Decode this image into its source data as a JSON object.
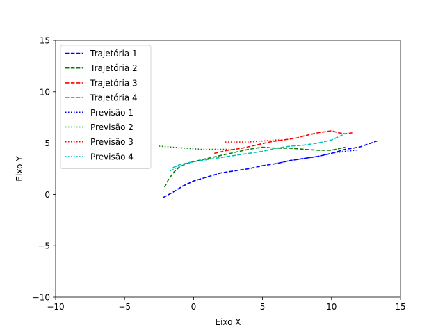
{
  "chart_data": {
    "type": "line",
    "title": "",
    "xlabel": "Eixo X",
    "ylabel": "Eixo Y",
    "xlim": [
      -10,
      15
    ],
    "ylim": [
      -10,
      15
    ],
    "xticks": [
      -10,
      -5,
      0,
      5,
      10,
      15
    ],
    "yticks": [
      -10,
      -5,
      0,
      5,
      10,
      15
    ],
    "xtick_labels": [
      "−10",
      "−5",
      "0",
      "5",
      "10",
      "15"
    ],
    "ytick_labels": [
      "−10",
      "−5",
      "0",
      "5",
      "10",
      "15"
    ],
    "grid": false,
    "legend_position": "top-left",
    "series": [
      {
        "name": "Trajetória 1",
        "color": "#0000ff",
        "style": "dashed",
        "x": [
          -2.2,
          -1.5,
          -0.8,
          0.0,
          1.0,
          2.0,
          3.0,
          4.0,
          5.0,
          6.0,
          7.0,
          8.0,
          9.0,
          10.0,
          11.0,
          12.0,
          13.3
        ],
        "y": [
          -0.3,
          0.2,
          0.8,
          1.3,
          1.7,
          2.1,
          2.3,
          2.5,
          2.8,
          3.0,
          3.3,
          3.5,
          3.7,
          4.0,
          4.4,
          4.6,
          5.2
        ]
      },
      {
        "name": "Trajetória 2",
        "color": "#008000",
        "style": "dashed",
        "x": [
          -2.1,
          -1.8,
          -1.4,
          -1.0,
          -0.5,
          0.0,
          1.0,
          2.0,
          3.0,
          4.0,
          5.0,
          6.0,
          7.0,
          8.0,
          9.0,
          10.0,
          11.0
        ],
        "y": [
          0.7,
          1.5,
          2.2,
          2.7,
          3.0,
          3.2,
          3.5,
          3.8,
          4.1,
          4.4,
          4.6,
          4.5,
          4.5,
          4.4,
          4.3,
          4.3,
          4.6
        ]
      },
      {
        "name": "Trajetória 3",
        "color": "#ff0000",
        "style": "dashed",
        "x": [
          1.5,
          2.5,
          3.5,
          4.5,
          5.5,
          6.5,
          7.5,
          8.0,
          9.0,
          10.0,
          10.5,
          11.0,
          11.5
        ],
        "y": [
          4.0,
          4.3,
          4.5,
          4.8,
          5.1,
          5.3,
          5.5,
          5.7,
          6.0,
          6.2,
          6.0,
          5.9,
          6.0
        ]
      },
      {
        "name": "Trajetória 4",
        "color": "#00bfbf",
        "style": "dashed",
        "x": [
          -1.5,
          -1.0,
          0.0,
          1.0,
          2.0,
          3.0,
          4.0,
          5.0,
          6.0,
          7.0,
          8.0,
          9.0,
          10.0,
          10.8
        ],
        "y": [
          2.6,
          2.9,
          3.2,
          3.4,
          3.6,
          3.8,
          4.0,
          4.2,
          4.5,
          4.7,
          4.8,
          5.0,
          5.3,
          5.8
        ]
      },
      {
        "name": "Previsão 1",
        "color": "#0000ff",
        "style": "dotted",
        "x": [
          6.0,
          7.0,
          8.0,
          9.0,
          10.0,
          11.0,
          11.8
        ],
        "y": [
          3.0,
          3.3,
          3.5,
          3.7,
          4.0,
          4.2,
          4.3
        ]
      },
      {
        "name": "Previsão 2",
        "color": "#008000",
        "style": "dotted",
        "x": [
          -2.5,
          -1.5,
          -0.5,
          0.5,
          1.5,
          2.5,
          3.0
        ],
        "y": [
          4.7,
          4.6,
          4.5,
          4.4,
          4.4,
          4.4,
          4.4
        ]
      },
      {
        "name": "Previsão 3",
        "color": "#ff0000",
        "style": "dotted",
        "x": [
          2.3,
          3.0,
          4.0,
          5.0,
          6.0,
          6.5
        ],
        "y": [
          5.1,
          5.1,
          5.1,
          5.2,
          5.3,
          5.3
        ]
      },
      {
        "name": "Previsão 4",
        "color": "#00bfbf",
        "style": "dotted",
        "x": [
          -1.7,
          -1.2,
          -0.7,
          -0.2
        ],
        "y": [
          2.3,
          2.6,
          2.9,
          3.1
        ]
      }
    ]
  }
}
